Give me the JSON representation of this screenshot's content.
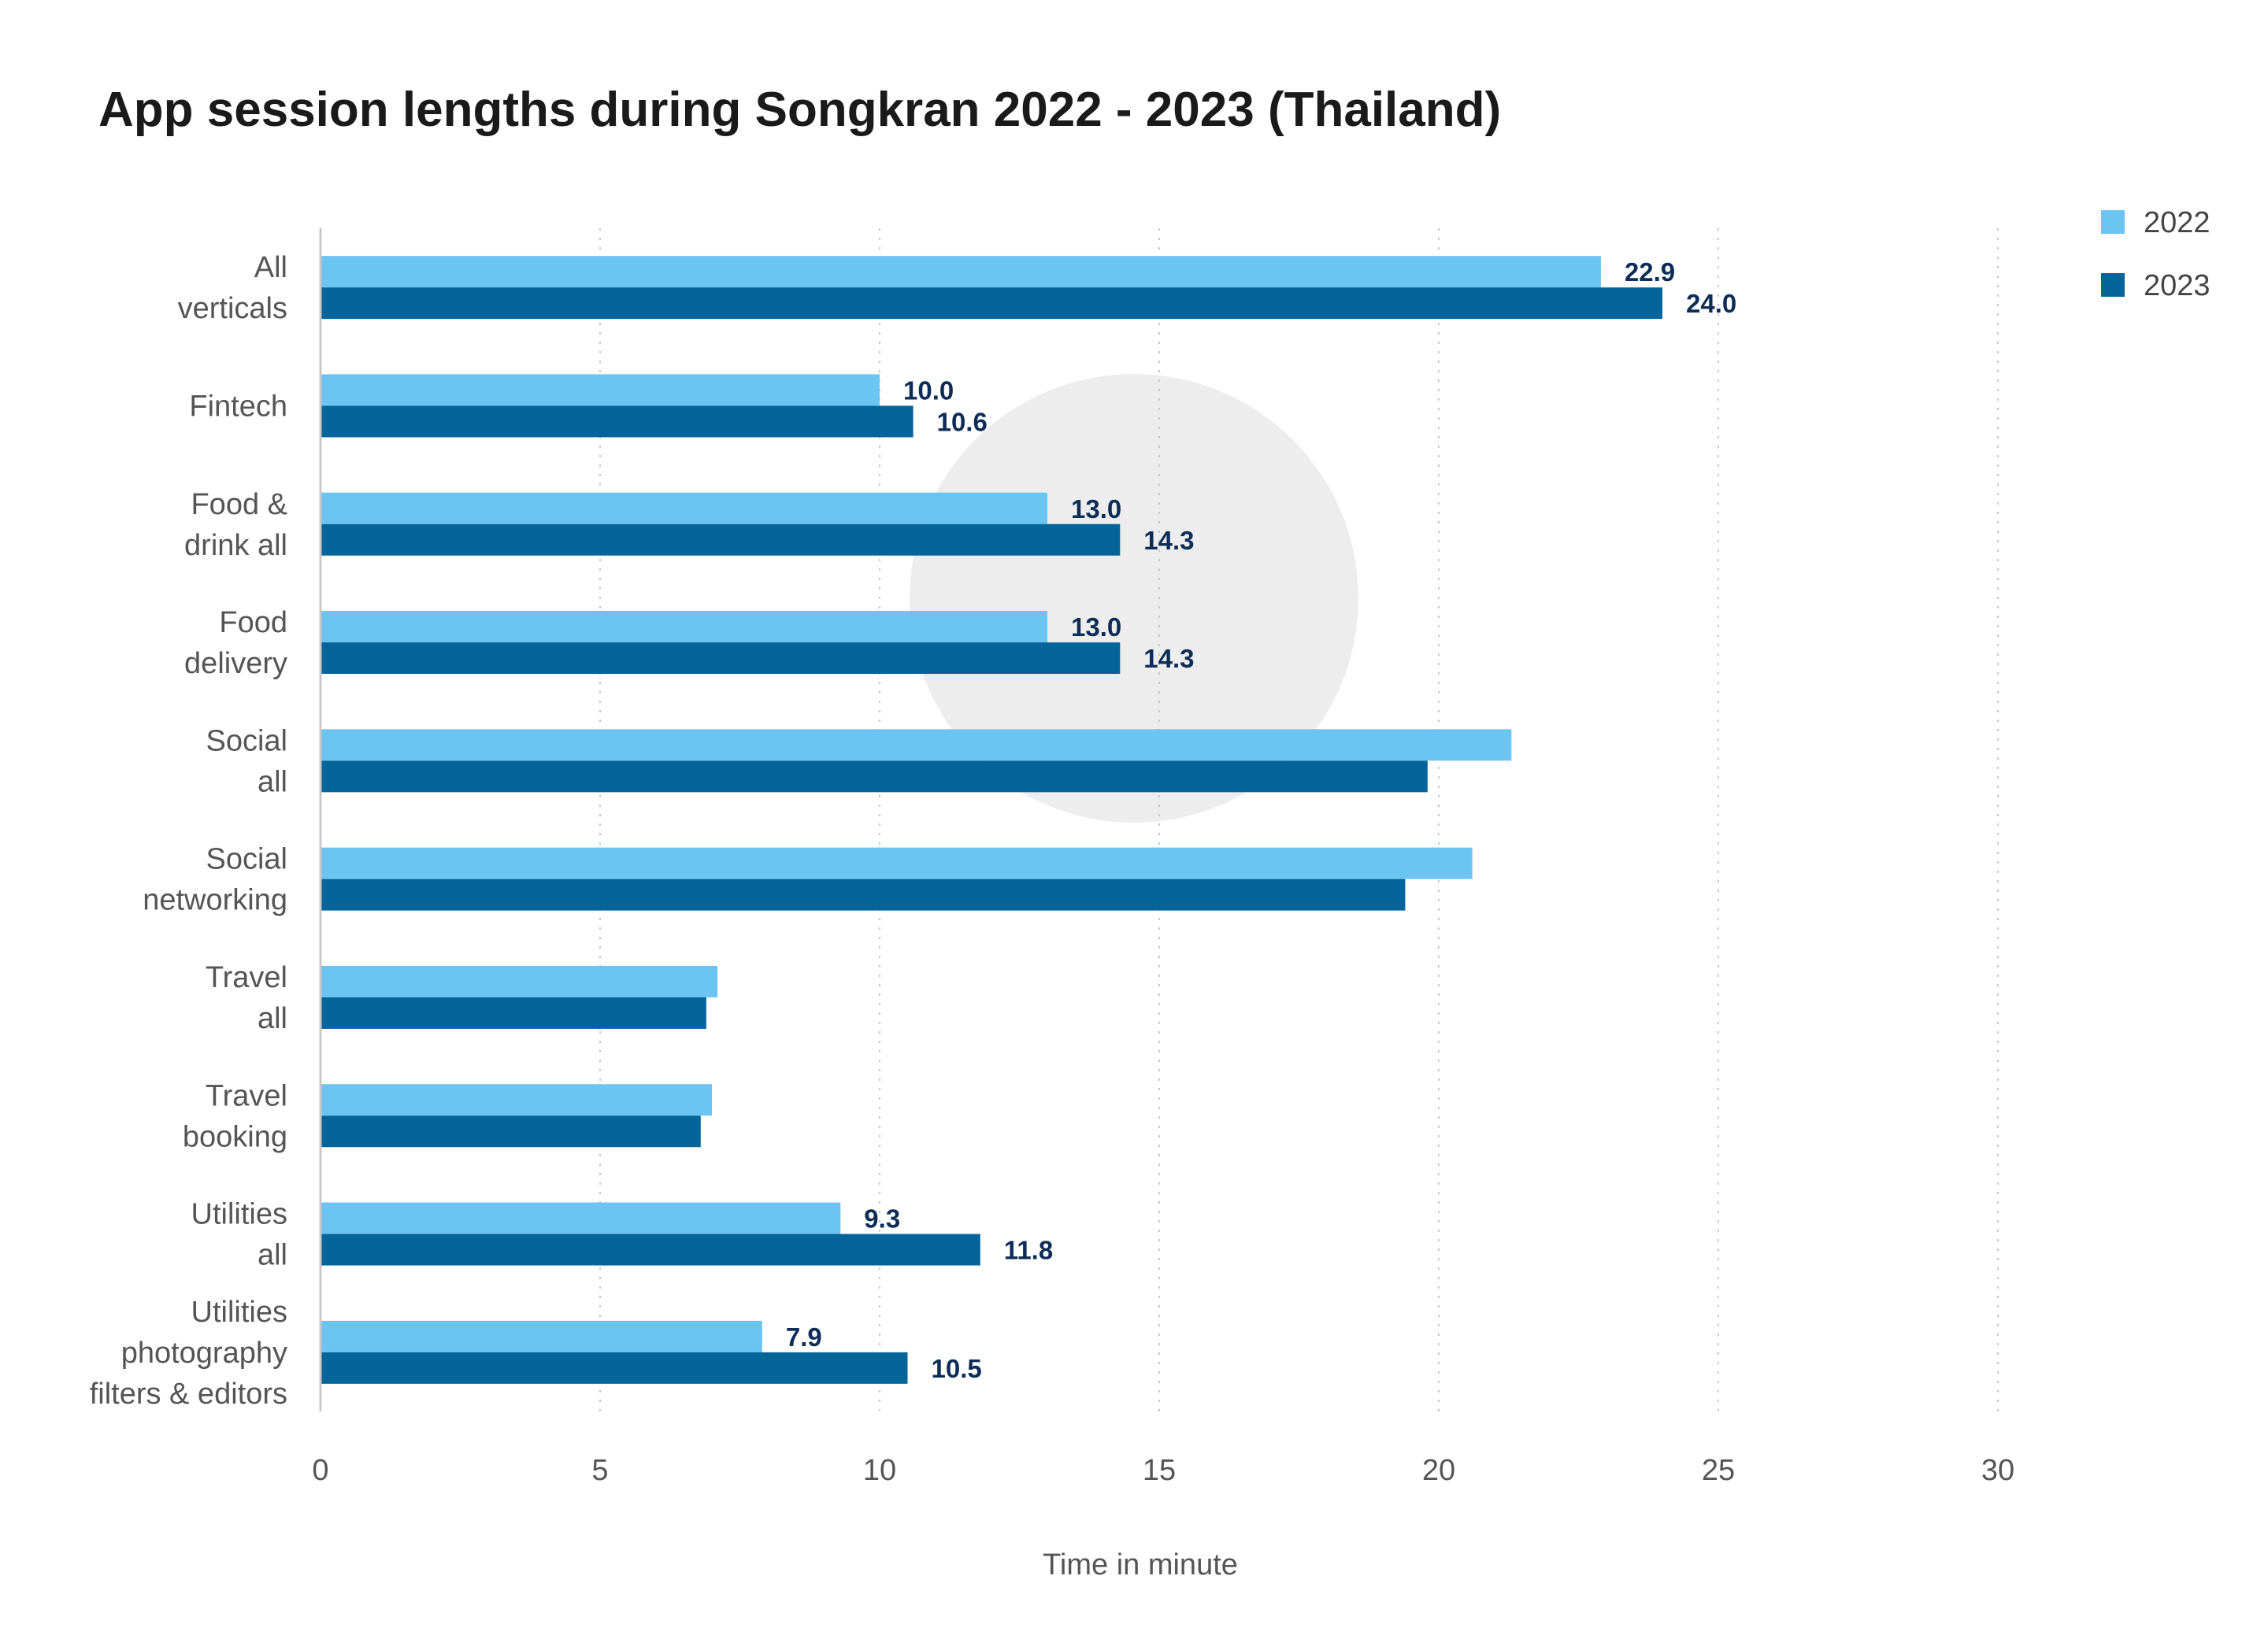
{
  "chart_data": {
    "type": "bar",
    "orientation": "horizontal",
    "title": "App session lengths during Songkran 2022 - 2023 (Thailand)",
    "xlabel": "Time in minute",
    "ylabel": "",
    "xlim": [
      0,
      30
    ],
    "x_ticks": [
      0,
      5,
      10,
      15,
      20,
      25,
      30
    ],
    "grid": "vertical dotted",
    "legend_position": "top-right",
    "categories": [
      [
        "All",
        "verticals"
      ],
      [
        "Fintech"
      ],
      [
        "Food &",
        "drink all"
      ],
      [
        "Food",
        "delivery"
      ],
      [
        "Social",
        "all"
      ],
      [
        "Social",
        "networking"
      ],
      [
        "Travel",
        "all"
      ],
      [
        "Travel",
        "booking"
      ],
      [
        "Utilities",
        "all"
      ],
      [
        "Utilities",
        "photography",
        "filters & editors"
      ]
    ],
    "series": [
      {
        "name": "2022",
        "color": "#6cc4f2",
        "values": [
          22.9,
          10.0,
          13.0,
          13.0,
          21.3,
          20.6,
          7.1,
          7.0,
          9.3,
          7.9
        ],
        "labels": [
          "22.9",
          "10.0",
          "13.0",
          "13.0",
          "",
          "",
          "",
          "",
          "9.3",
          "7.9"
        ]
      },
      {
        "name": "2023",
        "color": "#05659a",
        "values": [
          24.0,
          10.6,
          14.3,
          14.3,
          19.8,
          19.4,
          6.9,
          6.8,
          11.8,
          10.5
        ],
        "labels": [
          "24.0",
          "10.6",
          "14.3",
          "14.3",
          "",
          "",
          "",
          "",
          "11.8",
          "10.5"
        ]
      }
    ]
  }
}
